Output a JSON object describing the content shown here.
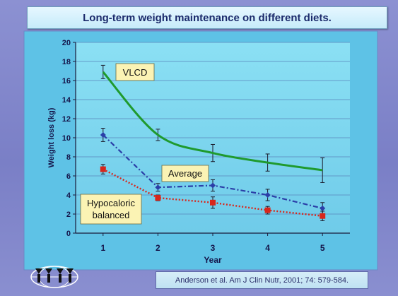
{
  "slide": {
    "title": "Long-term weight maintenance on different diets.",
    "citation": "Anderson et al. Am J Clin Nutr, 2001; 74: 579-584."
  },
  "colors": {
    "vlcd": "#1f9a2e",
    "average": "#2b3fa8",
    "hypocaloric": "#d8261b",
    "plot_area": "#7fd6ef",
    "label_box": "#fbf3b4"
  },
  "icons": {
    "logo": "logo-icon"
  },
  "chart_data": {
    "type": "line",
    "title": "",
    "xlabel": "Year",
    "ylabel": "Weight loss (kg)",
    "x": [
      1,
      2,
      3,
      4,
      5
    ],
    "x_ticks": [
      "1",
      "2",
      "3",
      "4",
      "5"
    ],
    "xlim": [
      0.5,
      5.5
    ],
    "ylim": [
      0,
      20
    ],
    "y_ticks": [
      "0",
      "2",
      "4",
      "6",
      "8",
      "10",
      "12",
      "14",
      "16",
      "18",
      "20"
    ],
    "grid": true,
    "legend": "none",
    "series": [
      {
        "name": "VLCD",
        "values": [
          16.9,
          10.3,
          8.4,
          7.4,
          6.6
        ],
        "errors": [
          0.7,
          0.6,
          0.9,
          0.9,
          1.3
        ],
        "style": "solid",
        "marker": "none",
        "label": "VLCD"
      },
      {
        "name": "Average",
        "values": [
          10.3,
          4.8,
          5.0,
          4.0,
          2.6
        ],
        "errors": [
          0.7,
          0.4,
          0.6,
          0.6,
          0.6
        ],
        "style": "dashdot",
        "marker": "diamond",
        "label": "Average"
      },
      {
        "name": "Hypocaloric balanced",
        "values": [
          6.7,
          3.7,
          3.2,
          2.4,
          1.8
        ],
        "errors": [
          0.5,
          0.3,
          0.6,
          0.4,
          0.5
        ],
        "style": "dotted",
        "marker": "square",
        "label": [
          "Hypocaloric",
          "balanced"
        ]
      }
    ]
  }
}
